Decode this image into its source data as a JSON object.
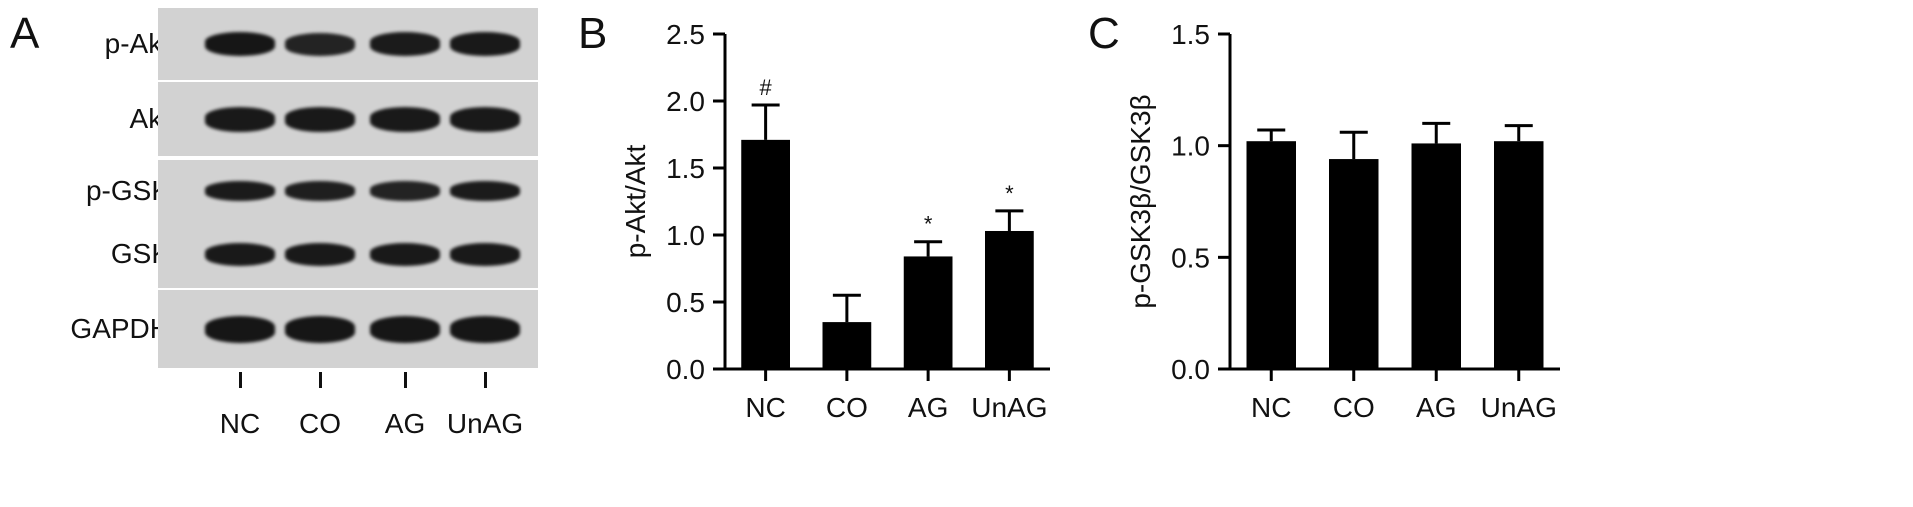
{
  "panels": {
    "a": "A",
    "b": "B",
    "c": "C"
  },
  "blot": {
    "rows": [
      {
        "label": "p-Akt",
        "band_intensity": [
          1.0,
          0.8,
          0.9,
          0.95
        ]
      },
      {
        "label": "Akt",
        "band_intensity": [
          0.95,
          0.95,
          0.95,
          0.95
        ]
      },
      {
        "label": "p-GSK",
        "band_intensity": [
          0.9,
          0.85,
          0.8,
          0.9
        ]
      },
      {
        "label": "GSK",
        "band_intensity": [
          0.95,
          0.95,
          0.95,
          0.95
        ]
      },
      {
        "label": "GAPDH",
        "band_intensity": [
          1.0,
          1.0,
          1.0,
          1.0
        ]
      }
    ],
    "lanes": [
      "NC",
      "CO",
      "AG",
      "UnAG"
    ],
    "colors": {
      "background": "#d2d2d2",
      "band": "#161616"
    }
  },
  "chart_data": [
    {
      "type": "bar",
      "categories": [
        "NC",
        "CO",
        "AG",
        "UnAG"
      ],
      "values": [
        1.71,
        0.35,
        0.84,
        1.03
      ],
      "errors": [
        0.26,
        0.2,
        0.11,
        0.15
      ],
      "annotations": [
        "#",
        "",
        "*",
        "*"
      ],
      "ylabel": "p-Akt/Akt",
      "ylim": [
        0,
        2.5
      ],
      "yticks": [
        "0.0",
        "0.5",
        "1.0",
        "1.5",
        "2.0",
        "2.5"
      ],
      "bar_color": "#000000"
    },
    {
      "type": "bar",
      "categories": [
        "NC",
        "CO",
        "AG",
        "UnAG"
      ],
      "values": [
        1.02,
        0.94,
        1.01,
        1.02
      ],
      "errors": [
        0.05,
        0.12,
        0.09,
        0.07
      ],
      "annotations": [
        "",
        "",
        "",
        ""
      ],
      "ylabel": "p-GSK3β/GSK3β",
      "ylim": [
        0,
        1.5
      ],
      "yticks": [
        "0.0",
        "0.5",
        "1.0",
        "1.5"
      ],
      "bar_color": "#000000"
    }
  ]
}
